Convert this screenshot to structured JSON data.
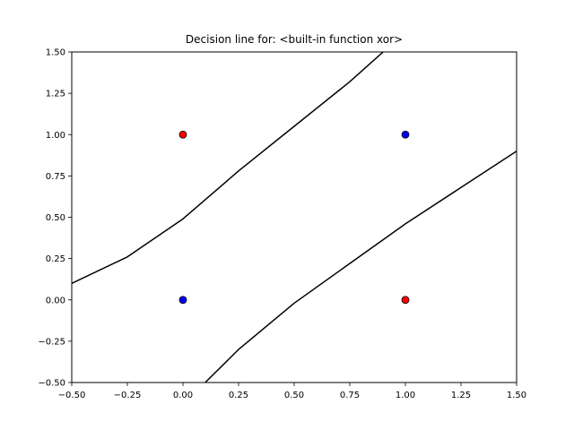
{
  "chart_data": {
    "type": "scatter",
    "title": "Decision line for: <built-in function xor>",
    "xlabel": "",
    "ylabel": "",
    "xlim": [
      -0.5,
      1.5
    ],
    "ylim": [
      -0.5,
      1.5
    ],
    "grid": false,
    "x_ticks": [
      -0.5,
      -0.25,
      0.0,
      0.25,
      0.5,
      0.75,
      1.0,
      1.25,
      1.5
    ],
    "x_tick_labels": [
      "−0.50",
      "−0.25",
      "0.00",
      "0.25",
      "0.50",
      "0.75",
      "1.00",
      "1.25",
      "1.50"
    ],
    "y_ticks": [
      -0.5,
      -0.25,
      0.0,
      0.25,
      0.5,
      0.75,
      1.0,
      1.25,
      1.5
    ],
    "y_tick_labels": [
      "−0.50",
      "−0.25",
      "0.00",
      "0.25",
      "0.50",
      "0.75",
      "1.00",
      "1.25",
      "1.50"
    ],
    "points": [
      {
        "x": 0,
        "y": 1,
        "color": "#ff0000"
      },
      {
        "x": 1,
        "y": 1,
        "color": "#0000ff"
      },
      {
        "x": 0,
        "y": 0,
        "color": "#0000ff"
      },
      {
        "x": 1,
        "y": 0,
        "color": "#ff0000"
      }
    ],
    "decision_lines": [
      {
        "color": "#000000",
        "points": [
          [
            -0.5,
            0.1
          ],
          [
            -0.25,
            0.26
          ],
          [
            0.0,
            0.49
          ],
          [
            0.25,
            0.78
          ],
          [
            0.5,
            1.05
          ],
          [
            0.75,
            1.32
          ],
          [
            0.9,
            1.5
          ]
        ]
      },
      {
        "color": "#000000",
        "points": [
          [
            0.1,
            -0.5
          ],
          [
            0.25,
            -0.3
          ],
          [
            0.5,
            -0.02
          ],
          [
            0.75,
            0.22
          ],
          [
            1.0,
            0.46
          ],
          [
            1.25,
            0.68
          ],
          [
            1.5,
            0.9
          ]
        ]
      }
    ]
  }
}
